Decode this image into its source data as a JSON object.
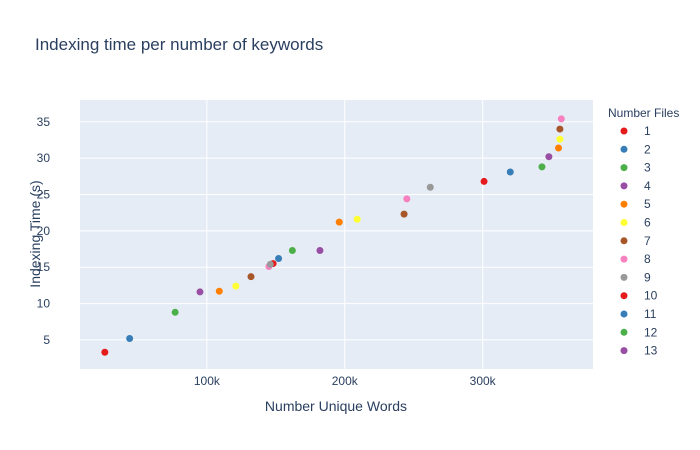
{
  "chart_data": {
    "type": "scatter",
    "title": "Indexing time per number of keywords",
    "xlabel": "Number Unique Words",
    "ylabel": "Indexing Time (s)",
    "xlim": [
      8000,
      380000
    ],
    "ylim": [
      1,
      38
    ],
    "x_ticks": [
      100000,
      200000,
      300000
    ],
    "x_tick_labels": [
      "100k",
      "200k",
      "300k"
    ],
    "y_ticks": [
      5,
      10,
      15,
      20,
      25,
      30,
      35
    ],
    "y_tick_labels": [
      "5",
      "10",
      "15",
      "20",
      "25",
      "30",
      "35"
    ],
    "grid": true,
    "legend": {
      "title": "Number Files",
      "position": "right"
    },
    "series": [
      {
        "name": "1",
        "color": "#e41a1c",
        "points": [
          [
            26000,
            3.3
          ],
          [
            148000,
            15.5
          ],
          [
            301000,
            26.8
          ]
        ]
      },
      {
        "name": "2",
        "color": "#377eb8",
        "points": [
          [
            44000,
            5.2
          ],
          [
            152000,
            16.2
          ],
          [
            320000,
            28.1
          ]
        ]
      },
      {
        "name": "3",
        "color": "#4daf4a",
        "points": [
          [
            77000,
            8.8
          ],
          [
            162000,
            17.3
          ],
          [
            343000,
            28.8
          ]
        ]
      },
      {
        "name": "4",
        "color": "#984ea3",
        "points": [
          [
            95000,
            11.6
          ],
          [
            182000,
            17.3
          ],
          [
            348000,
            30.2
          ]
        ]
      },
      {
        "name": "5",
        "color": "#ff7f00",
        "points": [
          [
            109000,
            11.7
          ],
          [
            196000,
            21.2
          ],
          [
            355000,
            31.4
          ]
        ]
      },
      {
        "name": "6",
        "color": "#ffff33",
        "points": [
          [
            121000,
            12.4
          ],
          [
            209000,
            21.6
          ],
          [
            356000,
            32.6
          ]
        ]
      },
      {
        "name": "7",
        "color": "#a65628",
        "points": [
          [
            132000,
            13.7
          ],
          [
            243000,
            22.3
          ],
          [
            356000,
            34.0
          ]
        ]
      },
      {
        "name": "8",
        "color": "#f781bf",
        "points": [
          [
            145000,
            15.1
          ],
          [
            245000,
            24.4
          ],
          [
            357000,
            35.4
          ]
        ]
      },
      {
        "name": "9",
        "color": "#999999",
        "points": [
          [
            146000,
            15.4
          ],
          [
            262000,
            26.0
          ]
        ]
      },
      {
        "name": "10",
        "color": "#e41a1c",
        "points": []
      },
      {
        "name": "11",
        "color": "#377eb8",
        "points": []
      },
      {
        "name": "12",
        "color": "#4daf4a",
        "points": []
      },
      {
        "name": "13",
        "color": "#984ea3",
        "points": []
      }
    ]
  }
}
